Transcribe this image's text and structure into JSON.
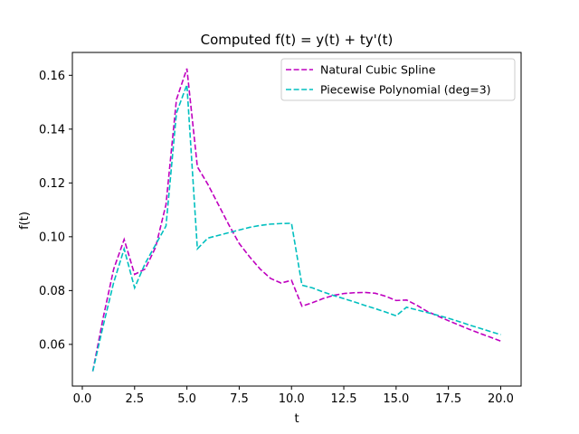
{
  "chart_data": {
    "type": "line",
    "title": "Computed f(t) = y(t) + ty'(t)",
    "xlabel": "t",
    "ylabel": "f(t)",
    "xlim": [
      -0.475,
      20.975
    ],
    "ylim": [
      0.0445,
      0.1685
    ],
    "xticks": [
      0.0,
      2.5,
      5.0,
      7.5,
      10.0,
      12.5,
      15.0,
      17.5,
      20.0
    ],
    "xtick_labels": [
      "0.0",
      "2.5",
      "5.0",
      "7.5",
      "10.0",
      "12.5",
      "15.0",
      "17.5",
      "20.0"
    ],
    "yticks": [
      0.06,
      0.08,
      0.1,
      0.12,
      0.14,
      0.16
    ],
    "ytick_labels": [
      "0.06",
      "0.08",
      "0.10",
      "0.12",
      "0.14",
      "0.16"
    ],
    "grid": false,
    "legend_position": "top-right",
    "series": [
      {
        "name": "Natural Cubic Spline",
        "color": "#bf00bf",
        "x": [
          0.5,
          1.0,
          1.5,
          2.0,
          2.5,
          3.0,
          3.5,
          4.0,
          4.5,
          5.0,
          5.5,
          6.0,
          6.5,
          7.0,
          7.5,
          8.0,
          8.5,
          9.0,
          9.5,
          10.0,
          10.5,
          11.0,
          11.5,
          12.0,
          12.5,
          13.0,
          13.5,
          14.0,
          14.5,
          15.0,
          15.5,
          16.0,
          16.5,
          17.0,
          17.5,
          18.0,
          18.5,
          19.0,
          19.5,
          20.0
        ],
        "y": [
          0.05,
          0.07,
          0.088,
          0.099,
          0.086,
          0.088,
          0.096,
          0.112,
          0.151,
          0.1625,
          0.126,
          0.1195,
          0.112,
          0.1045,
          0.0975,
          0.0925,
          0.088,
          0.0845,
          0.0828,
          0.0838,
          0.0742,
          0.0755,
          0.077,
          0.0782,
          0.0789,
          0.0792,
          0.0793,
          0.079,
          0.0779,
          0.0763,
          0.0765,
          0.0745,
          0.0722,
          0.0705,
          0.0688,
          0.0672,
          0.0656,
          0.0641,
          0.0627,
          0.0612
        ]
      },
      {
        "name": "Piecewise Polynomial (deg=3)",
        "color": "#00bfbf",
        "x": [
          0.5,
          1.0,
          1.5,
          2.0,
          2.5,
          3.0,
          3.5,
          4.0,
          4.5,
          5.0,
          5.5,
          6.0,
          6.5,
          7.0,
          7.5,
          8.0,
          8.5,
          9.0,
          9.5,
          10.0,
          10.5,
          11.0,
          11.5,
          12.0,
          12.5,
          13.0,
          13.5,
          14.0,
          14.5,
          15.0,
          15.5,
          16.0,
          16.5,
          17.0,
          17.5,
          18.0,
          18.5,
          19.0,
          19.5,
          20.0
        ],
        "y": [
          0.05,
          0.067,
          0.083,
          0.0955,
          0.081,
          0.09,
          0.097,
          0.104,
          0.146,
          0.1565,
          0.0955,
          0.0995,
          0.1005,
          0.1015,
          0.1025,
          0.1035,
          0.1042,
          0.1047,
          0.1049,
          0.105,
          0.082,
          0.081,
          0.0795,
          0.0782,
          0.077,
          0.0758,
          0.0745,
          0.0733,
          0.072,
          0.0706,
          0.0738,
          0.0728,
          0.0718,
          0.0708,
          0.0697,
          0.0685,
          0.0672,
          0.066,
          0.0648,
          0.0636
        ]
      }
    ]
  }
}
